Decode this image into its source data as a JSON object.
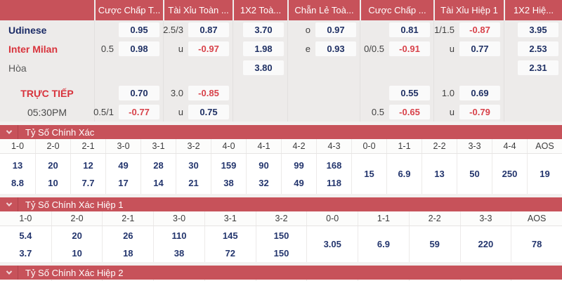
{
  "colors": {
    "accent_red": "#c7525a",
    "odds_navy": "#1f3064",
    "odds_negative_red": "#d8424a",
    "away_red": "#d8333c"
  },
  "odds_table": {
    "headers": [
      "",
      "Cược Chấp T...",
      "Tài Xỉu Toàn ...",
      "1X2 Toà...",
      "Chẵn Lẻ Toà...",
      "Cược Chấp ...",
      "Tài Xỉu Hiệp 1",
      "1X2 Hiệ..."
    ],
    "rows": [
      {
        "name": "Udinese",
        "cells": [
          {
            "hdp": "",
            "odds": "0.95"
          },
          {
            "hdp": "2.5/3",
            "odds": "0.87"
          },
          {
            "hdp": "",
            "odds": "3.70"
          },
          {
            "hdp": "o",
            "odds": "0.97"
          },
          {
            "hdp": "",
            "odds": "0.81"
          },
          {
            "hdp": "1/1.5",
            "odds": "-0.87"
          },
          {
            "hdp": "",
            "odds": "3.95"
          }
        ]
      },
      {
        "name": "Inter Milan",
        "cells": [
          {
            "hdp": "0.5",
            "odds": "0.98"
          },
          {
            "hdp": "u",
            "odds": "-0.97"
          },
          {
            "hdp": "",
            "odds": "1.98"
          },
          {
            "hdp": "e",
            "odds": "0.93"
          },
          {
            "hdp": "0/0.5",
            "odds": "-0.91"
          },
          {
            "hdp": "u",
            "odds": "0.77"
          },
          {
            "hdp": "",
            "odds": "2.53"
          }
        ]
      },
      {
        "name": "Hòa",
        "cells": [
          {
            "hdp": "",
            "odds": ""
          },
          {
            "hdp": "",
            "odds": ""
          },
          {
            "hdp": "",
            "odds": "3.80"
          },
          {
            "hdp": "",
            "odds": ""
          },
          {
            "hdp": "",
            "odds": ""
          },
          {
            "hdp": "",
            "odds": ""
          },
          {
            "hdp": "",
            "odds": "2.31"
          }
        ]
      },
      {
        "name": "TRỰC TIẾP",
        "cells": [
          {
            "hdp": "",
            "odds": "0.70"
          },
          {
            "hdp": "3.0",
            "odds": "-0.85"
          },
          {
            "hdp": "",
            "odds": ""
          },
          {
            "hdp": "",
            "odds": ""
          },
          {
            "hdp": "",
            "odds": "0.55"
          },
          {
            "hdp": "1.0",
            "odds": "0.69"
          },
          {
            "hdp": "",
            "odds": ""
          }
        ]
      },
      {
        "name": "05:30PM",
        "cells": [
          {
            "hdp": "0.5/1",
            "odds": "-0.77"
          },
          {
            "hdp": "u",
            "odds": "0.75"
          },
          {
            "hdp": "",
            "odds": ""
          },
          {
            "hdp": "",
            "odds": ""
          },
          {
            "hdp": "0.5",
            "odds": "-0.65"
          },
          {
            "hdp": "u",
            "odds": "-0.79"
          },
          {
            "hdp": "",
            "odds": ""
          }
        ]
      }
    ]
  },
  "score_full": {
    "title": "Tỷ Số Chính Xác",
    "columns": [
      "1-0",
      "2-0",
      "2-1",
      "3-0",
      "3-1",
      "3-2",
      "4-0",
      "4-1",
      "4-2",
      "4-3",
      "0-0",
      "1-1",
      "2-2",
      "3-3",
      "4-4",
      "AOS"
    ],
    "values": [
      {
        "top": "13",
        "bot": "8.8"
      },
      {
        "top": "20",
        "bot": "10"
      },
      {
        "top": "12",
        "bot": "7.7"
      },
      {
        "top": "49",
        "bot": "17"
      },
      {
        "top": "28",
        "bot": "14"
      },
      {
        "top": "30",
        "bot": "21"
      },
      {
        "top": "159",
        "bot": "38"
      },
      {
        "top": "90",
        "bot": "32"
      },
      {
        "top": "99",
        "bot": "49"
      },
      {
        "top": "168",
        "bot": "118"
      },
      {
        "mid": "15"
      },
      {
        "mid": "6.9"
      },
      {
        "mid": "13"
      },
      {
        "mid": "50"
      },
      {
        "mid": "250"
      },
      {
        "mid": "19"
      }
    ]
  },
  "score_h1": {
    "title": "Tỷ Số Chính Xác Hiệp 1",
    "columns": [
      "1-0",
      "2-0",
      "2-1",
      "3-0",
      "3-1",
      "3-2",
      "0-0",
      "1-1",
      "2-2",
      "3-3",
      "AOS"
    ],
    "values": [
      {
        "top": "5.4",
        "bot": "3.7"
      },
      {
        "top": "20",
        "bot": "10"
      },
      {
        "top": "26",
        "bot": "18"
      },
      {
        "top": "110",
        "bot": "38"
      },
      {
        "top": "145",
        "bot": "72"
      },
      {
        "top": "150",
        "bot": "150"
      },
      {
        "mid": "3.05"
      },
      {
        "mid": "6.9"
      },
      {
        "mid": "59"
      },
      {
        "mid": "220"
      },
      {
        "mid": "78"
      }
    ]
  },
  "score_h2": {
    "title": "Tỷ Số Chính Xác Hiệp 2"
  }
}
